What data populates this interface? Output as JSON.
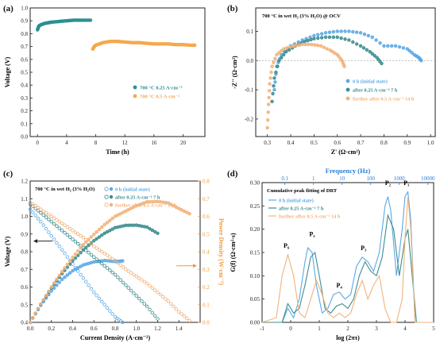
{
  "colors": {
    "teal": "#2a8f93",
    "orange": "#f5a84c",
    "light_blue": "#5aa8e6",
    "teal_mid": "#3c8c8e",
    "light_orange": "#f2b27a",
    "blue_axis": "#2e7fd6",
    "orange_axis": "#f39a3a"
  },
  "chart_data": [
    {
      "panel": "(a)",
      "type": "scatter",
      "xlabel": "Time (h)",
      "ylabel": "Voltage (V)",
      "xlim": [
        -1,
        23
      ],
      "ylim": [
        0,
        1.0
      ],
      "xticks": [
        "0",
        "4",
        "8",
        "12",
        "16",
        "20"
      ],
      "yticks": [
        "0.0",
        "0.1",
        "0.2",
        "0.3",
        "0.4",
        "0.5",
        "0.6",
        "0.7",
        "0.8",
        "0.9",
        "1.0"
      ],
      "legend_position": "bottom-right",
      "series": [
        {
          "name": "700 °C 0.25 A·cm⁻²",
          "color": "teal",
          "x": [
            0,
            0.2,
            0.5,
            1,
            1.5,
            2,
            3,
            4,
            5,
            6,
            7.3
          ],
          "y": [
            0.83,
            0.86,
            0.87,
            0.88,
            0.885,
            0.89,
            0.895,
            0.9,
            0.905,
            0.905,
            0.905
          ]
        },
        {
          "name": "700 °C 0.5 A·cm⁻²",
          "color": "orange",
          "x": [
            7.6,
            7.8,
            8,
            8.5,
            9,
            10,
            11,
            12,
            13,
            14,
            15,
            16,
            17,
            18,
            19,
            20,
            21,
            21.6
          ],
          "y": [
            0.68,
            0.7,
            0.71,
            0.72,
            0.73,
            0.74,
            0.74,
            0.735,
            0.73,
            0.73,
            0.725,
            0.72,
            0.72,
            0.72,
            0.715,
            0.715,
            0.71,
            0.71
          ]
        }
      ]
    },
    {
      "panel": "(b)",
      "type": "scatter",
      "title": "700 °C in wet H₂ (3% H₂O) @ OCV",
      "xlabel": "Z' (Ω·cm²)",
      "ylabel": "-Z'' (Ω·cm²)",
      "xlim": [
        0.25,
        1.02
      ],
      "ylim": [
        -0.26,
        0.18
      ],
      "xticks": [
        "0.3",
        "0.4",
        "0.5",
        "0.6",
        "0.7",
        "0.8",
        "0.9",
        "1.0"
      ],
      "yticks": [
        "-0.2",
        "-0.1",
        "0.0",
        "0.1"
      ],
      "legend_position": "bottom-right",
      "series": [
        {
          "name": "0 h (initial state)",
          "color": "light_blue",
          "x": [
            0.33,
            0.34,
            0.36,
            0.4,
            0.45,
            0.5,
            0.55,
            0.6,
            0.65,
            0.7,
            0.75,
            0.8,
            0.85,
            0.9,
            0.93,
            0.95,
            0.96
          ],
          "y": [
            -0.1,
            -0.02,
            0.02,
            0.05,
            0.07,
            0.085,
            0.095,
            0.1,
            0.1,
            0.095,
            0.08,
            0.05,
            0.05,
            0.04,
            0.02,
            0.01,
            0.0
          ]
        },
        {
          "name": "after 0.25 A·cm⁻² 7 h",
          "color": "teal_mid",
          "x": [
            0.32,
            0.33,
            0.35,
            0.38,
            0.42,
            0.46,
            0.5,
            0.55,
            0.6,
            0.65,
            0.7,
            0.74,
            0.77,
            0.79
          ],
          "y": [
            -0.14,
            -0.06,
            0.0,
            0.03,
            0.05,
            0.065,
            0.075,
            0.08,
            0.08,
            0.07,
            0.05,
            0.03,
            0.01,
            -0.01
          ]
        },
        {
          "name": "further after 0.5 A·cm⁻² 14 h",
          "color": "light_orange",
          "x": [
            0.3,
            0.305,
            0.31,
            0.32,
            0.34,
            0.37,
            0.41,
            0.45,
            0.49,
            0.53,
            0.57,
            0.6,
            0.62,
            0.63
          ],
          "y": [
            -0.23,
            -0.15,
            -0.08,
            -0.02,
            0.02,
            0.04,
            0.05,
            0.055,
            0.055,
            0.05,
            0.035,
            0.02,
            0.0,
            -0.02
          ]
        }
      ]
    },
    {
      "panel": "(c)",
      "type": "scatter",
      "title": "700 °C in wet H₂ (3% H₂O)",
      "xlabel": "Current Density (A·cm⁻²)",
      "ylabel": "Voltage (V)",
      "y2label": "Power Density (W·cm⁻²)",
      "xlim": [
        0,
        1.6
      ],
      "ylim": [
        0.4,
        1.2
      ],
      "y2lim": [
        0,
        0.8
      ],
      "xticks": [
        "0.0",
        "0.2",
        "0.4",
        "0.6",
        "0.8",
        "1.0",
        "1.2",
        "1.4"
      ],
      "yticks": [
        "0.4",
        "0.5",
        "0.6",
        "0.7",
        "0.8",
        "0.9",
        "1.0",
        "1.1",
        "1.2"
      ],
      "y2ticks": [
        "0.0",
        "0.1",
        "0.2",
        "0.3",
        "0.4",
        "0.5",
        "0.6",
        "0.7",
        "0.8"
      ],
      "legend_position": "top-right",
      "series": [
        {
          "name": "0 h (initial state)",
          "color": "light_blue",
          "x": [
            0,
            0.1,
            0.2,
            0.3,
            0.4,
            0.5,
            0.6,
            0.7,
            0.8,
            0.87
          ],
          "voltage": [
            1.04,
            0.97,
            0.89,
            0.81,
            0.73,
            0.65,
            0.57,
            0.5,
            0.43,
            0.4
          ],
          "power": [
            0,
            0.097,
            0.178,
            0.243,
            0.292,
            0.325,
            0.342,
            0.35,
            0.344,
            0.348
          ]
        },
        {
          "name": "after 0.25 A·cm⁻² 7 h",
          "color": "teal_mid",
          "x": [
            0,
            0.1,
            0.2,
            0.3,
            0.4,
            0.5,
            0.6,
            0.7,
            0.8,
            0.9,
            1.0,
            1.1,
            1.2
          ],
          "voltage": [
            1.07,
            1.02,
            0.97,
            0.92,
            0.87,
            0.82,
            0.77,
            0.72,
            0.67,
            0.61,
            0.55,
            0.49,
            0.42
          ],
          "power": [
            0,
            0.102,
            0.194,
            0.276,
            0.348,
            0.41,
            0.462,
            0.504,
            0.536,
            0.549,
            0.55,
            0.539,
            0.504
          ]
        },
        {
          "name": "further after 0.5 A·cm⁻² 14 h",
          "color": "light_orange",
          "x": [
            0,
            0.1,
            0.2,
            0.3,
            0.4,
            0.5,
            0.6,
            0.7,
            0.8,
            0.9,
            1.0,
            1.1,
            1.2,
            1.3,
            1.4,
            1.5
          ],
          "voltage": [
            1.08,
            1.04,
            1.0,
            0.96,
            0.92,
            0.88,
            0.83,
            0.79,
            0.75,
            0.7,
            0.66,
            0.62,
            0.57,
            0.52,
            0.46,
            0.41
          ],
          "power": [
            0,
            0.104,
            0.2,
            0.288,
            0.368,
            0.44,
            0.498,
            0.553,
            0.6,
            0.63,
            0.66,
            0.682,
            0.684,
            0.676,
            0.644,
            0.615
          ]
        }
      ]
    },
    {
      "panel": "(d)",
      "type": "line",
      "title": "Cumulative peak fitting of DRT",
      "xlabel": "log (2πτ)",
      "ylabel": "G(f) (Ω·cm²·s)",
      "x2label": "Frequency (Hz)",
      "xlim": [
        -1,
        5
      ],
      "ylim": [
        0,
        0.3
      ],
      "xticks": [
        "-1",
        "0",
        "1",
        "2",
        "3",
        "4",
        "5"
      ],
      "yticks": [
        "0.00",
        "0.05",
        "0.10",
        "0.15",
        "0.20",
        "0.25",
        "0.30"
      ],
      "x2ticks": [
        "0.1",
        "1",
        "10",
        "100",
        "1000",
        "10000"
      ],
      "legend_position": "top-left",
      "peaks": [
        "P₆",
        "P₅",
        "P₄",
        "P₃",
        "P₂",
        "P₁"
      ],
      "series": [
        {
          "name": "0 h (initial state)",
          "color": "light_blue",
          "x": [
            -1,
            -0.3,
            -0.1,
            0.1,
            0.3,
            0.5,
            0.6,
            0.75,
            0.9,
            1.1,
            1.3,
            1.5,
            1.7,
            1.9,
            2.1,
            2.3,
            2.5,
            2.7,
            2.9,
            3.1,
            3.3,
            3.4,
            3.5,
            3.7,
            3.9,
            4.0,
            4.1,
            4.2,
            4.35,
            5
          ],
          "y": [
            0,
            0,
            0.03,
            0.01,
            0.05,
            0.13,
            0.16,
            0.15,
            0.08,
            0.02,
            0.03,
            0.06,
            0.065,
            0.05,
            0.06,
            0.12,
            0.14,
            0.13,
            0.11,
            0.15,
            0.25,
            0.27,
            0.24,
            0.1,
            0.2,
            0.27,
            0.28,
            0.22,
            0.0,
            0
          ]
        },
        {
          "name": "after 0.25 A·cm⁻² 7 h",
          "color": "teal_mid",
          "x": [
            -1,
            -0.3,
            -0.1,
            0.1,
            0.3,
            0.5,
            0.7,
            0.85,
            1.0,
            1.2,
            1.4,
            1.6,
            1.8,
            2.0,
            2.2,
            2.4,
            2.6,
            2.8,
            3.0,
            3.2,
            3.4,
            3.6,
            3.8,
            4.0,
            4.1,
            4.25,
            4.4,
            5
          ],
          "y": [
            0,
            0,
            0.04,
            0.02,
            0.03,
            0.08,
            0.14,
            0.15,
            0.1,
            0.03,
            0.02,
            0.035,
            0.04,
            0.03,
            0.05,
            0.1,
            0.13,
            0.11,
            0.1,
            0.14,
            0.23,
            0.2,
            0.1,
            0.18,
            0.2,
            0.1,
            0.0,
            0
          ]
        },
        {
          "name": "further after 0.5 A·cm⁻² 14 h",
          "color": "light_orange",
          "x": [
            -1,
            -0.5,
            -0.3,
            -0.1,
            0.1,
            0.3,
            0.5,
            0.7,
            0.9,
            1.1,
            1.3,
            1.5,
            1.7,
            1.9,
            2.1,
            2.3,
            2.5,
            2.7,
            2.9,
            3.1,
            3.3,
            3.5,
            3.7,
            3.9,
            4.0,
            4.1,
            4.2,
            4.35,
            5
          ],
          "y": [
            0,
            0.01,
            0.1,
            0.145,
            0.1,
            0.02,
            0.01,
            0.05,
            0.09,
            0.06,
            0.02,
            0.01,
            0.02,
            0.01,
            0.02,
            0.06,
            0.09,
            0.05,
            0.08,
            0.1,
            0.03,
            0.0,
            0.0,
            0.05,
            0.18,
            0.27,
            0.2,
            0.0,
            0
          ]
        }
      ]
    }
  ]
}
